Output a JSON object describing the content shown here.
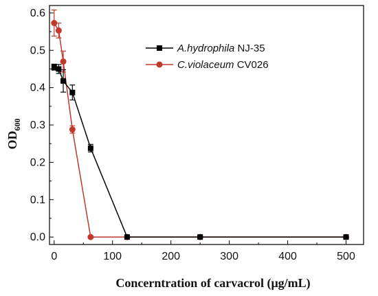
{
  "chart_data": {
    "type": "scatter",
    "xlabel": "Concerntration of carvacrol (μg/mL)",
    "ylabel": "OD",
    "ylabel_sub": "600",
    "xlim": [
      -8,
      530
    ],
    "ylim": [
      -0.02,
      0.62
    ],
    "x_ticks": [
      0,
      100,
      200,
      300,
      400,
      500
    ],
    "y_ticks": [
      0.0,
      0.1,
      0.2,
      0.3,
      0.4,
      0.5,
      0.6
    ],
    "legend_position": "upper-center",
    "grid": false,
    "series": [
      {
        "name_italic": "A.hydrophila",
        "name_rest": " NJ-35",
        "color": "#000000",
        "errorbar_color": "#000000",
        "marker": "square",
        "x": [
          0,
          7.8,
          15.6,
          31.25,
          62.5,
          125,
          250,
          500
        ],
        "y": [
          0.455,
          0.45,
          0.418,
          0.387,
          0.238,
          0.0,
          0.0,
          0.0
        ],
        "err": [
          0.008,
          0.012,
          0.03,
          0.02,
          0.01,
          0.003,
          0.003,
          0.003
        ]
      },
      {
        "name_italic": "C.violaceum",
        "name_rest": " CV026",
        "color": "#c0392b",
        "errorbar_color": "#c0392b",
        "marker": "circle",
        "x": [
          0,
          7.8,
          15.6,
          31.25,
          62.5,
          125,
          250,
          500
        ],
        "y": [
          0.573,
          0.553,
          0.47,
          0.288,
          0.0,
          0.0,
          0.0,
          0.0
        ],
        "err": [
          0.035,
          0.02,
          0.028,
          0.01,
          0.002,
          0.002,
          0.002,
          0.002
        ]
      }
    ]
  }
}
